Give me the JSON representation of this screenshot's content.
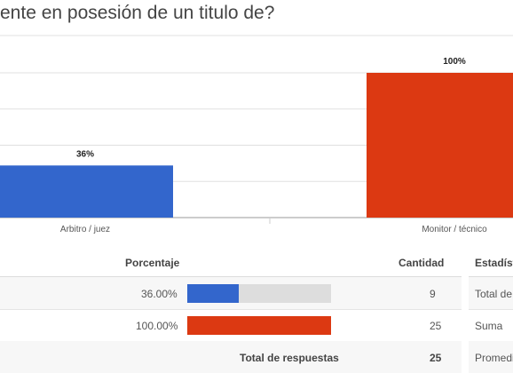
{
  "question": {
    "title": "ente en posesión de un titulo de?"
  },
  "chart_data": {
    "type": "bar",
    "categories": [
      "Arbitro / juez",
      "Monitor / técnico"
    ],
    "values": [
      36,
      100
    ],
    "data_labels": [
      "36%",
      "100%"
    ],
    "colors": [
      "#3366cc",
      "#dc3912"
    ],
    "ylim": [
      0,
      100
    ],
    "grid": true
  },
  "table": {
    "headers": {
      "percentage": "Porcentaje",
      "count": "Cantidad",
      "stats": "Estadísti"
    },
    "rows": [
      {
        "percent": "36.00%",
        "percent_value": 36,
        "count": "9",
        "color": "#3366cc",
        "stat": "Total de"
      },
      {
        "percent": "100.00%",
        "percent_value": 100,
        "count": "25",
        "color": "#dc3912",
        "stat": "Suma"
      }
    ],
    "total_label": "Total de respuestas",
    "total_value": "25",
    "stat_extra": "Promedi"
  }
}
